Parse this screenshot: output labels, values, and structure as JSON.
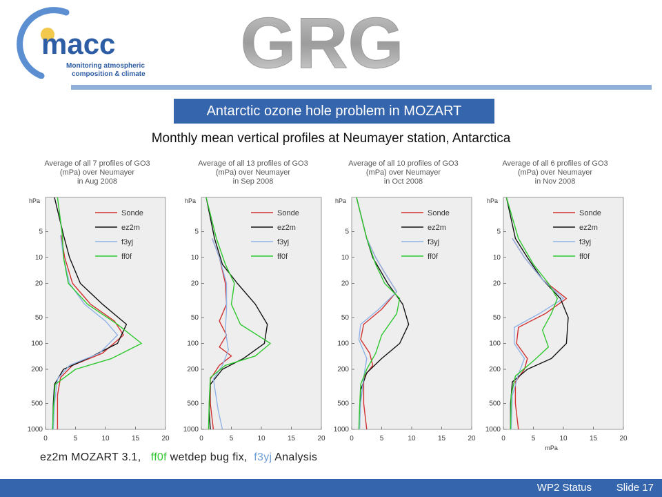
{
  "header": {
    "macc_logo": {
      "name": "macc",
      "tagline_1": "Monitoring atmospheric",
      "tagline_2": "composition & climate",
      "colors": {
        "text": "#2d5da4",
        "orbit": "#5b8fd2",
        "dot": "#f2c94c"
      }
    },
    "grg_logo": {
      "text": "GRG",
      "fill": "#b7b7b7"
    }
  },
  "slide": {
    "title": "Antarctic ozone hole problem in MOZART",
    "subtitle": "Monthly mean vertical profiles at Neumayer station, Antarctica",
    "legend_prefix": "ez2m MOZART 3.1,",
    "legend_ff0f": "ff0f",
    "legend_ff0f_desc": "wetdep bug fix,",
    "legend_f3yj": "f3yj",
    "legend_f3yj_desc": "Analysis"
  },
  "footer": {
    "status": "WP2 Status",
    "slide": "Slide 17"
  },
  "colors": {
    "accent": "#3565ac",
    "rule": "#8fb0d8",
    "Sonde": "#d0302f",
    "ez2m": "#111111",
    "f3yj": "#8fb3e6",
    "ff0f": "#2ec82e"
  },
  "chart_data": [
    {
      "type": "line",
      "title": [
        "Average of all 7 profiles of GO3",
        "(mPa) over Neumayer",
        "in Aug 2008"
      ],
      "ylabel": "hPa",
      "xlabel": "mPa",
      "yscale": "log",
      "yinvert": true,
      "xlim": [
        0,
        20
      ],
      "ylim": [
        1000,
        2
      ],
      "xticks": [
        "0",
        "5",
        "10",
        "15",
        "20"
      ],
      "yticks": [
        {
          "v": 5,
          "t": "5"
        },
        {
          "v": 10,
          "t": "10"
        },
        {
          "v": 20,
          "t": "20"
        },
        {
          "v": 50,
          "t": "50"
        },
        {
          "v": 100,
          "t": "100"
        },
        {
          "v": 200,
          "t": "200"
        },
        {
          "v": 500,
          "t": "500"
        },
        {
          "v": 1000,
          "t": "1000"
        }
      ],
      "legend": [
        "Sonde",
        "ez2m",
        "f3yj",
        "ff0f"
      ],
      "show_xlabel": false,
      "series": [
        {
          "name": "Sonde",
          "points": [
            [
              2.6,
              5.5
            ],
            [
              3.2,
              10
            ],
            [
              4.5,
              20
            ],
            [
              7.5,
              35
            ],
            [
              11.5,
              55
            ],
            [
              13,
              80
            ],
            [
              9.5,
              130
            ],
            [
              4.5,
              180
            ],
            [
              2.5,
              250
            ],
            [
              2,
              400
            ],
            [
              2,
              700
            ],
            [
              2,
              1000
            ]
          ]
        },
        {
          "name": "ez2m",
          "points": [
            [
              1.5,
              2
            ],
            [
              3,
              5.5
            ],
            [
              4,
              10
            ],
            [
              5.8,
              20
            ],
            [
              9.5,
              35
            ],
            [
              13.5,
              60
            ],
            [
              12,
              100
            ],
            [
              7,
              150
            ],
            [
              3,
              200
            ],
            [
              1.5,
              300
            ],
            [
              1.3,
              500
            ],
            [
              1.2,
              1000
            ]
          ]
        },
        {
          "name": "f3yj",
          "points": [
            [
              2.5,
              5.5
            ],
            [
              3,
              10
            ],
            [
              4,
              20
            ],
            [
              6.5,
              35
            ],
            [
              10,
              55
            ],
            [
              12,
              80
            ],
            [
              9,
              130
            ],
            [
              4,
              180
            ],
            [
              2,
              260
            ],
            [
              1.5,
              500
            ],
            [
              1.3,
              1000
            ]
          ]
        },
        {
          "name": "ff0f",
          "points": [
            [
              2,
              2
            ],
            [
              2.8,
              5.5
            ],
            [
              3,
              10
            ],
            [
              3.8,
              20
            ],
            [
              7,
              35
            ],
            [
              12,
              60
            ],
            [
              16,
              100
            ],
            [
              11,
              150
            ],
            [
              5,
              200
            ],
            [
              1.6,
              300
            ],
            [
              1.3,
              600
            ],
            [
              1.2,
              1000
            ]
          ]
        }
      ]
    },
    {
      "type": "line",
      "title": [
        "Average of all 13 profiles of GO3",
        "(mPa) over Neumayer",
        "in Sep 2008"
      ],
      "ylabel": "hPa",
      "xlabel": "mPa",
      "yscale": "log",
      "yinvert": true,
      "xlim": [
        0,
        20
      ],
      "ylim": [
        1000,
        2
      ],
      "xticks": [
        "0",
        "5",
        "10",
        "15",
        "20"
      ],
      "yticks": [
        {
          "v": 5,
          "t": "5"
        },
        {
          "v": 10,
          "t": "10"
        },
        {
          "v": 20,
          "t": "20"
        },
        {
          "v": 50,
          "t": "50"
        },
        {
          "v": 100,
          "t": "100"
        },
        {
          "v": 200,
          "t": "200"
        },
        {
          "v": 500,
          "t": "500"
        },
        {
          "v": 1000,
          "t": "1000"
        }
      ],
      "legend": [
        "Sonde",
        "ez2m",
        "f3yj",
        "ff0f"
      ],
      "show_xlabel": false,
      "series": [
        {
          "name": "Sonde",
          "points": [
            [
              1.8,
              6
            ],
            [
              3,
              10
            ],
            [
              4,
              20
            ],
            [
              4.2,
              35
            ],
            [
              3,
              55
            ],
            [
              4.2,
              80
            ],
            [
              3,
              110
            ],
            [
              5,
              140
            ],
            [
              3,
              180
            ],
            [
              1.5,
              260
            ],
            [
              1.5,
              500
            ],
            [
              2,
              1000
            ]
          ]
        },
        {
          "name": "ez2m",
          "points": [
            [
              0.8,
              2
            ],
            [
              2.2,
              6
            ],
            [
              3.5,
              12
            ],
            [
              6,
              20
            ],
            [
              9,
              35
            ],
            [
              11,
              60
            ],
            [
              10.5,
              100
            ],
            [
              7,
              150
            ],
            [
              3.5,
              200
            ],
            [
              1.5,
              300
            ],
            [
              1.3,
              600
            ],
            [
              1.5,
              1000
            ]
          ]
        },
        {
          "name": "f3yj",
          "points": [
            [
              1.8,
              6
            ],
            [
              3,
              10
            ],
            [
              4.2,
              20
            ],
            [
              4.2,
              40
            ],
            [
              4,
              70
            ],
            [
              4.5,
              120
            ],
            [
              3.5,
              180
            ],
            [
              2,
              260
            ],
            [
              2.8,
              600
            ],
            [
              3.5,
              1000
            ]
          ]
        },
        {
          "name": "ff0f",
          "points": [
            [
              0.8,
              2
            ],
            [
              2.5,
              6
            ],
            [
              4,
              12
            ],
            [
              5.5,
              20
            ],
            [
              5,
              35
            ],
            [
              6.5,
              60
            ],
            [
              11.5,
              100
            ],
            [
              9,
              140
            ],
            [
              4,
              180
            ],
            [
              1.5,
              250
            ],
            [
              1.3,
              500
            ],
            [
              1.2,
              1000
            ]
          ]
        }
      ]
    },
    {
      "type": "line",
      "title": [
        "Average of all 10 profiles of GO3",
        "(mPa) over Neumayer",
        "in Oct 2008"
      ],
      "ylabel": "hPa",
      "xlabel": "mPa",
      "yscale": "log",
      "yinvert": true,
      "xlim": [
        0,
        20
      ],
      "ylim": [
        1000,
        2
      ],
      "xticks": [
        "0",
        "5",
        "10",
        "15",
        "20"
      ],
      "yticks": [
        {
          "v": 5,
          "t": "5"
        },
        {
          "v": 10,
          "t": "10"
        },
        {
          "v": 20,
          "t": "20"
        },
        {
          "v": 50,
          "t": "50"
        },
        {
          "v": 100,
          "t": "100"
        },
        {
          "v": 200,
          "t": "200"
        },
        {
          "v": 500,
          "t": "500"
        },
        {
          "v": 1000,
          "t": "1000"
        }
      ],
      "legend": [
        "Sonde",
        "ez2m",
        "f3yj",
        "ff0f"
      ],
      "show_xlabel": false,
      "series": [
        {
          "name": "Sonde",
          "points": [
            [
              2.5,
              6
            ],
            [
              4,
              10
            ],
            [
              5.5,
              15
            ],
            [
              7.5,
              25
            ],
            [
              5,
              40
            ],
            [
              2,
              60
            ],
            [
              1.5,
              90
            ],
            [
              3,
              130
            ],
            [
              3.5,
              180
            ],
            [
              2,
              250
            ],
            [
              2,
              500
            ],
            [
              2.5,
              1000
            ]
          ]
        },
        {
          "name": "ez2m",
          "points": [
            [
              0.8,
              2
            ],
            [
              2.5,
              6
            ],
            [
              3.5,
              10
            ],
            [
              6,
              20
            ],
            [
              8.5,
              35
            ],
            [
              9.5,
              60
            ],
            [
              8,
              100
            ],
            [
              5,
              150
            ],
            [
              2.5,
              220
            ],
            [
              1.5,
              350
            ],
            [
              1.3,
              1000
            ]
          ]
        },
        {
          "name": "f3yj",
          "points": [
            [
              2.5,
              6
            ],
            [
              4,
              10
            ],
            [
              5.5,
              15
            ],
            [
              7.5,
              25
            ],
            [
              4.5,
              40
            ],
            [
              1.5,
              60
            ],
            [
              1.2,
              90
            ],
            [
              2.5,
              150
            ],
            [
              2,
              250
            ],
            [
              1.5,
              500
            ],
            [
              1.3,
              1000
            ]
          ]
        },
        {
          "name": "ff0f",
          "points": [
            [
              0.8,
              2
            ],
            [
              2.5,
              6
            ],
            [
              4,
              12
            ],
            [
              5.5,
              20
            ],
            [
              8,
              30
            ],
            [
              7.5,
              45
            ],
            [
              5,
              80
            ],
            [
              4,
              130
            ],
            [
              2.5,
              200
            ],
            [
              1.5,
              300
            ],
            [
              1.3,
              600
            ],
            [
              1.2,
              1000
            ]
          ]
        }
      ]
    },
    {
      "type": "line",
      "title": [
        "Average of all 6 profiles of GO3",
        "(mPa) over Neumayer",
        "in Nov 2008"
      ],
      "ylabel": "hPa",
      "xlabel": "mPa",
      "yscale": "log",
      "yinvert": true,
      "xlim": [
        0,
        20
      ],
      "ylim": [
        1000,
        2
      ],
      "xticks": [
        "0",
        "5",
        "10",
        "15",
        "20"
      ],
      "yticks": [
        {
          "v": 5,
          "t": "5"
        },
        {
          "v": 10,
          "t": "10"
        },
        {
          "v": 20,
          "t": "20"
        },
        {
          "v": 50,
          "t": "50"
        },
        {
          "v": 100,
          "t": "100"
        },
        {
          "v": 200,
          "t": "200"
        },
        {
          "v": 500,
          "t": "500"
        },
        {
          "v": 1000,
          "t": "1000"
        }
      ],
      "legend": [
        "Sonde",
        "ez2m",
        "f3yj",
        "ff0f"
      ],
      "show_xlabel": true,
      "series": [
        {
          "name": "Sonde",
          "points": [
            [
              1.5,
              6
            ],
            [
              3.5,
              10
            ],
            [
              6.5,
              18
            ],
            [
              10.5,
              30
            ],
            [
              7,
              45
            ],
            [
              2.5,
              65
            ],
            [
              2.2,
              100
            ],
            [
              4,
              150
            ],
            [
              3.5,
              200
            ],
            [
              2,
              280
            ],
            [
              2,
              500
            ],
            [
              2.5,
              1000
            ]
          ]
        },
        {
          "name": "ez2m",
          "points": [
            [
              0.5,
              2
            ],
            [
              2,
              6
            ],
            [
              4,
              10
            ],
            [
              6.5,
              18
            ],
            [
              9.5,
              30
            ],
            [
              10.8,
              50
            ],
            [
              10.5,
              100
            ],
            [
              8,
              150
            ],
            [
              4,
              200
            ],
            [
              1.5,
              280
            ],
            [
              1.2,
              500
            ],
            [
              1.2,
              1000
            ]
          ]
        },
        {
          "name": "f3yj",
          "points": [
            [
              1.5,
              6
            ],
            [
              3.5,
              10
            ],
            [
              6.5,
              18
            ],
            [
              10,
              30
            ],
            [
              6,
              45
            ],
            [
              1.8,
              65
            ],
            [
              1.8,
              100
            ],
            [
              3.5,
              150
            ],
            [
              2.5,
              230
            ],
            [
              1.5,
              400
            ],
            [
              1.3,
              1000
            ]
          ]
        },
        {
          "name": "ff0f",
          "points": [
            [
              0.5,
              2
            ],
            [
              2.5,
              6
            ],
            [
              5,
              12
            ],
            [
              7.5,
              20
            ],
            [
              9,
              30
            ],
            [
              8,
              45
            ],
            [
              6.5,
              70
            ],
            [
              7.5,
              110
            ],
            [
              5,
              160
            ],
            [
              2,
              240
            ],
            [
              1.3,
              400
            ],
            [
              1.2,
              1000
            ]
          ]
        }
      ]
    }
  ]
}
